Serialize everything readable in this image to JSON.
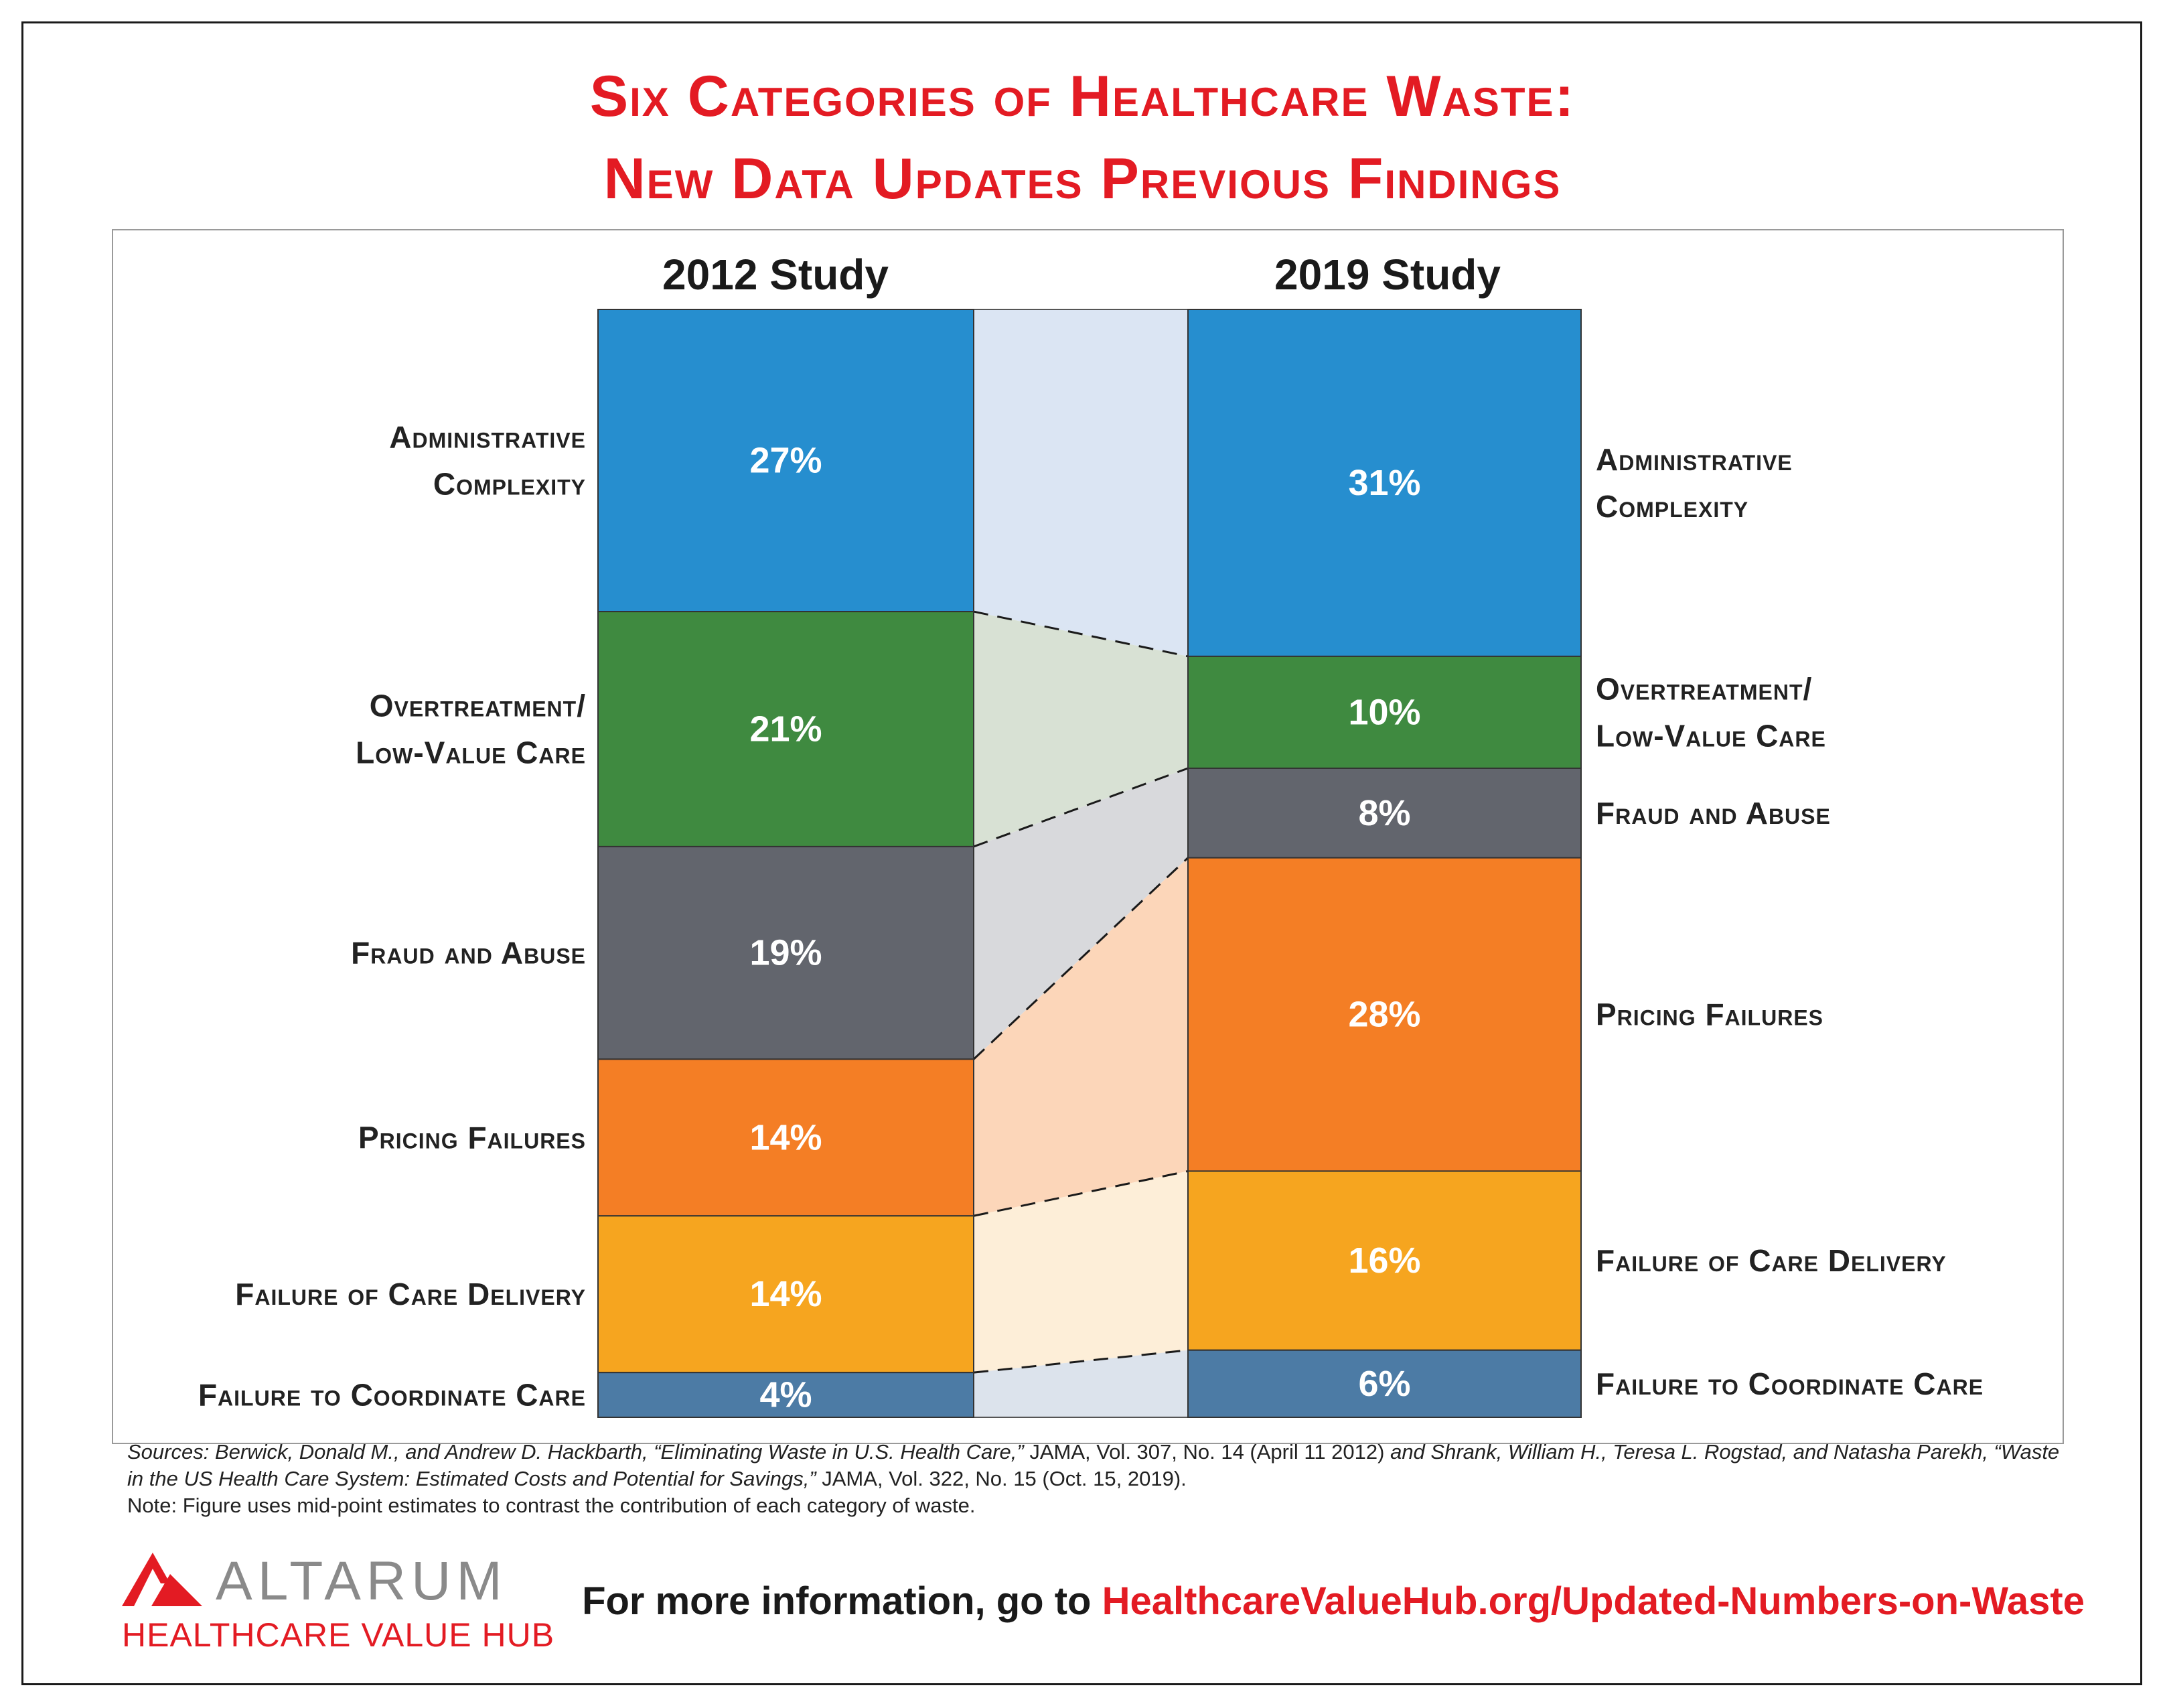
{
  "title_line1": "Six Categories of Healthcare Waste:",
  "title_line2": "New Data Updates Previous Findings",
  "chart_data": {
    "type": "stacked-bar-comparison",
    "studies": [
      "2012 Study",
      "2019 Study"
    ],
    "categories": [
      {
        "name": "Administrative Complexity",
        "label_lines": [
          "Administrative",
          "Complexity"
        ],
        "color": "#268ecf",
        "band_color": "#dbe5f3",
        "value_2012": 27,
        "value_2019": 31,
        "label_2012": "27%",
        "label_2019": "31%"
      },
      {
        "name": "Overtreatment/ Low-Value Care",
        "label_lines": [
          "Overtreatment/",
          "Low-Value Care"
        ],
        "color": "#3f8a40",
        "band_color": "#d8e1d4",
        "value_2012": 21,
        "value_2019": 10,
        "label_2012": "21%",
        "label_2019": "10%"
      },
      {
        "name": "Fraud and Abuse",
        "label_lines": [
          "Fraud and Abuse"
        ],
        "color": "#62656d",
        "band_color": "#d8d9dc",
        "value_2012": 19,
        "value_2019": 8,
        "label_2012": "19%",
        "label_2019": "8%"
      },
      {
        "name": "Pricing Failures",
        "label_lines": [
          "Pricing Failures"
        ],
        "color": "#f47e25",
        "band_color": "#fcd6b9",
        "value_2012": 14,
        "value_2019": 28,
        "label_2012": "14%",
        "label_2019": "28%"
      },
      {
        "name": "Failure of Care Delivery",
        "label_lines": [
          "Failure of Care Delivery"
        ],
        "color": "#f6a51f",
        "band_color": "#fdeed8",
        "value_2012": 14,
        "value_2019": 16,
        "label_2012": "14%",
        "label_2019": "16%"
      },
      {
        "name": "Failure to Coordinate Care",
        "label_lines": [
          "Failure to Coordinate Care"
        ],
        "color": "#4c7ba5",
        "band_color": "#dce3ec",
        "value_2012": 4,
        "value_2019": 6,
        "label_2012": "4%",
        "label_2019": "6%"
      }
    ]
  },
  "sources": {
    "prefix": "Sources: ",
    "text1": "Berwick, Donald M., and Andrew D. Hackbarth, “Eliminating Waste in U.S. Health Care,”",
    "text2": " JAMA, Vol. 307, No. 14 (April 11 2012) ",
    "text3": "and Shrank, William H., Teresa L. Rogstad, and Natasha Parekh, “Waste in the US Health Care System: Estimated Costs and Potential for Savings,”",
    "text4": " JAMA, Vol. 322, No. 15 (Oct. 15, 2019).",
    "note": "Note: Figure uses mid-point estimates to contrast the contribution of each category of waste."
  },
  "logo": {
    "name": "ALTARUM",
    "sub": "HEALTHCARE VALUE HUB",
    "color": "#e31b23"
  },
  "footer": {
    "prefix": "For more information, go to ",
    "link": "HealthcareValueHub.org/Updated-Numbers-on-Waste"
  }
}
